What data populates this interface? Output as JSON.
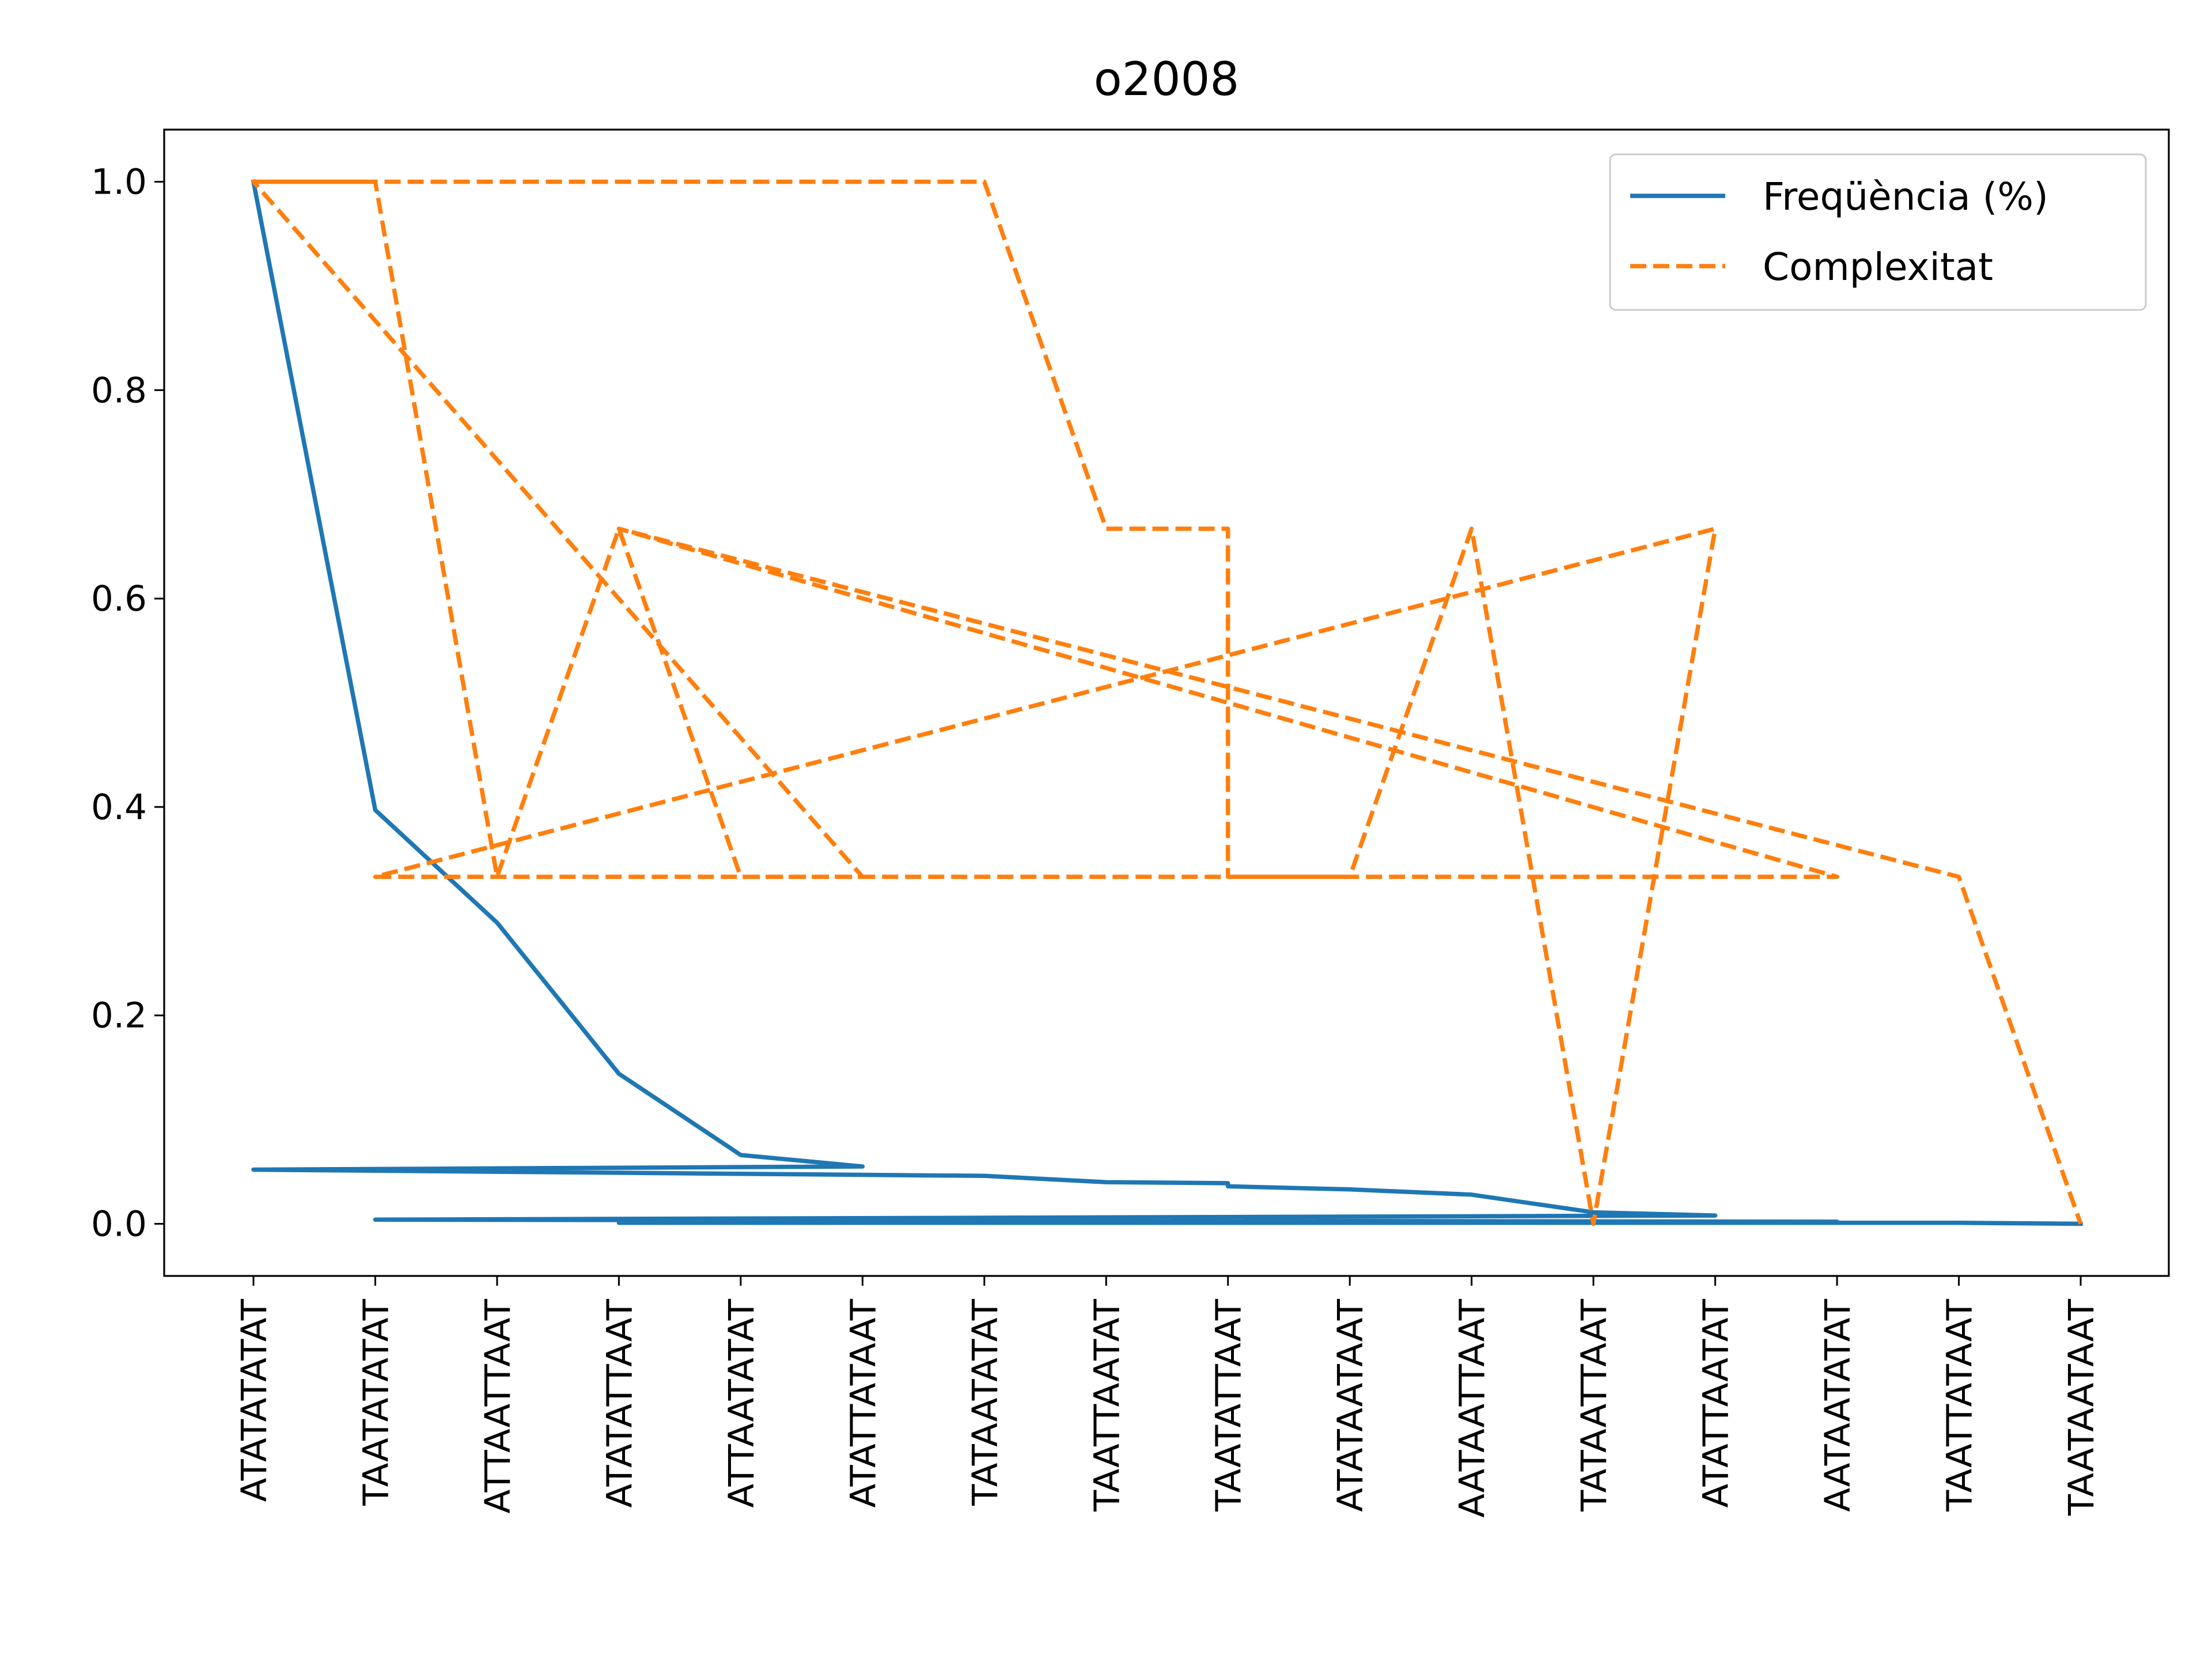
{
  "chart_data": {
    "type": "line",
    "title": "o2008",
    "xlabel": "",
    "ylabel": "",
    "ylim": [
      -0.05,
      1.05
    ],
    "yticks": [
      "0.0",
      "0.2",
      "0.4",
      "0.6",
      "0.8",
      "1.0"
    ],
    "ytick_values": [
      0.0,
      0.2,
      0.4,
      0.6,
      0.8,
      1.0
    ],
    "categories": [
      "ATATATATAT",
      "TAATATATAT",
      "ATTAATTAAT",
      "ATATATTAAT",
      "ATTAATATAT",
      "ATATTATAAT",
      "TATAATATAT",
      "TAATTAATAT",
      "TAATATTAAT",
      "ATATAATAAT",
      "AATAATTAAT",
      "TATAATTAAT",
      "ATATTAATAT",
      "AATAATATAT",
      "TAATTATAAT",
      "TAATAATAAT"
    ],
    "legend_position": "top-right",
    "series": [
      {
        "name": "Freqüència (%)",
        "color": "#1f77b4",
        "style": "solid",
        "x": [
          0,
          1,
          2,
          3,
          4,
          5,
          0,
          6,
          7,
          8,
          8,
          9,
          10,
          11,
          12,
          1,
          13,
          3,
          14,
          15
        ],
        "y": [
          1.0,
          0.397,
          0.289,
          0.144,
          0.066,
          0.055,
          0.052,
          0.046,
          0.04,
          0.039,
          0.036,
          0.033,
          0.028,
          0.011,
          0.008,
          0.004,
          0.002,
          0.001,
          0.001,
          0.0
        ]
      },
      {
        "name": "Complexitat",
        "color": "#ff7f0e",
        "style": "dashed",
        "x": [
          0,
          1,
          2,
          3,
          4,
          5,
          0,
          6,
          7,
          8,
          8,
          9,
          10,
          11,
          12,
          1,
          13,
          3,
          14,
          15
        ],
        "y": [
          1.0,
          1.0,
          0.333,
          0.667,
          0.333,
          0.333,
          1.0,
          1.0,
          0.667,
          0.667,
          0.333,
          0.333,
          0.667,
          0.0,
          0.667,
          0.333,
          0.333,
          0.667,
          0.333,
          0.0
        ]
      }
    ]
  }
}
